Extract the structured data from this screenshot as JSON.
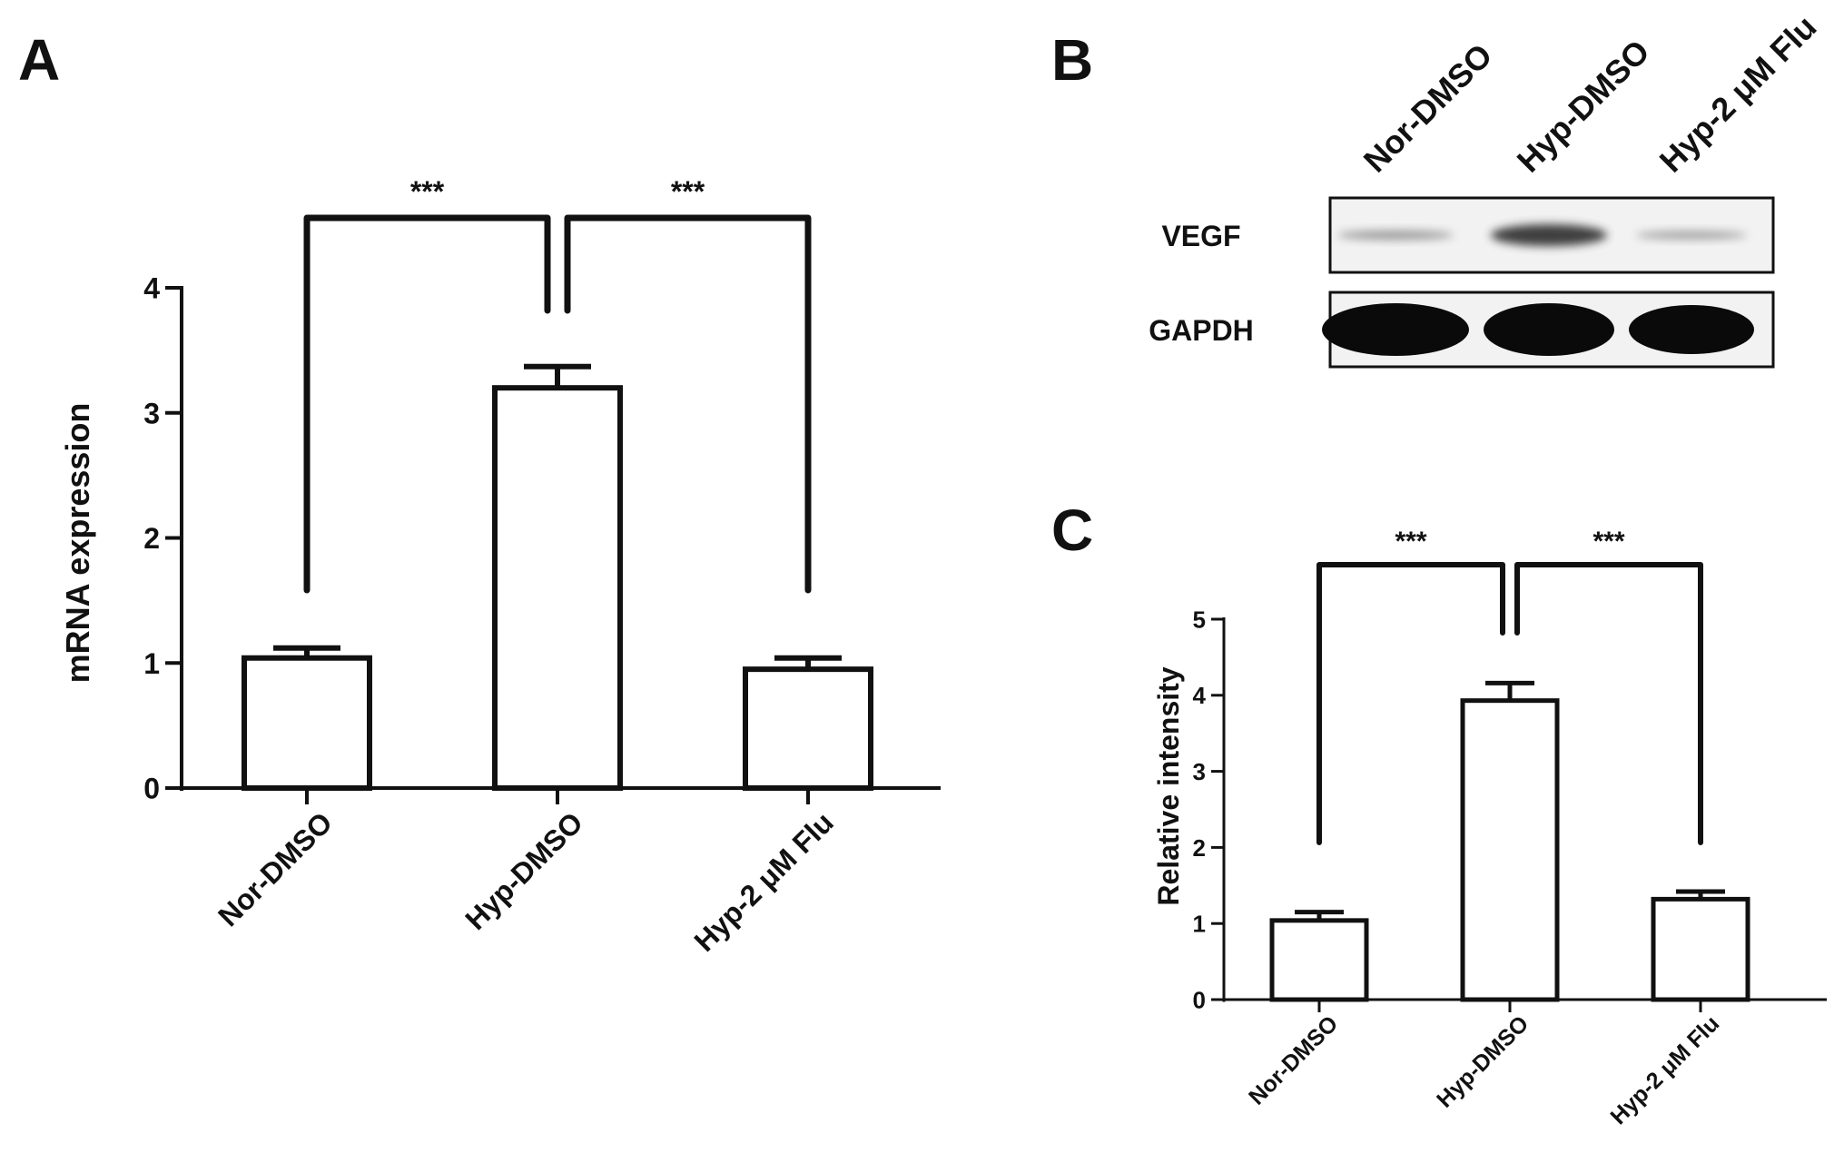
{
  "panel_b": {
    "label": "B",
    "lanes": [
      "Nor-DMSO",
      "Hyp-DMSO",
      "Hyp-2 μM Flu"
    ],
    "blots": [
      {
        "name": "VEGF",
        "intensity": [
          0.35,
          0.85,
          0.3
        ]
      },
      {
        "name": "GAPDH",
        "intensity": [
          1.0,
          1.0,
          1.0
        ]
      }
    ]
  },
  "chart_data": [
    {
      "panel": "A",
      "type": "bar",
      "categories": [
        "Nor-DMSO",
        "Hyp-DMSO",
        "Hyp-2 μM Flu"
      ],
      "values": [
        1.04,
        3.2,
        0.95
      ],
      "errors": [
        0.08,
        0.17,
        0.09
      ],
      "ylabel": "mRNA expression",
      "ylim": [
        0,
        4
      ],
      "yticks": [
        0,
        1,
        2,
        3,
        4
      ],
      "grid": false,
      "significance": [
        {
          "from": 0,
          "to": 1,
          "label": "***"
        },
        {
          "from": 1,
          "to": 2,
          "label": "***"
        }
      ]
    },
    {
      "panel": "C",
      "type": "bar",
      "categories": [
        "Nor-DMSO",
        "Hyp-DMSO",
        "Hyp-2 μM Flu"
      ],
      "values": [
        1.04,
        3.93,
        1.32
      ],
      "errors": [
        0.11,
        0.23,
        0.1
      ],
      "ylabel": "Relative intensity",
      "ylim": [
        0,
        5
      ],
      "yticks": [
        0,
        1,
        2,
        3,
        4,
        5
      ],
      "grid": false,
      "significance": [
        {
          "from": 0,
          "to": 1,
          "label": "***"
        },
        {
          "from": 1,
          "to": 2,
          "label": "***"
        }
      ]
    }
  ]
}
